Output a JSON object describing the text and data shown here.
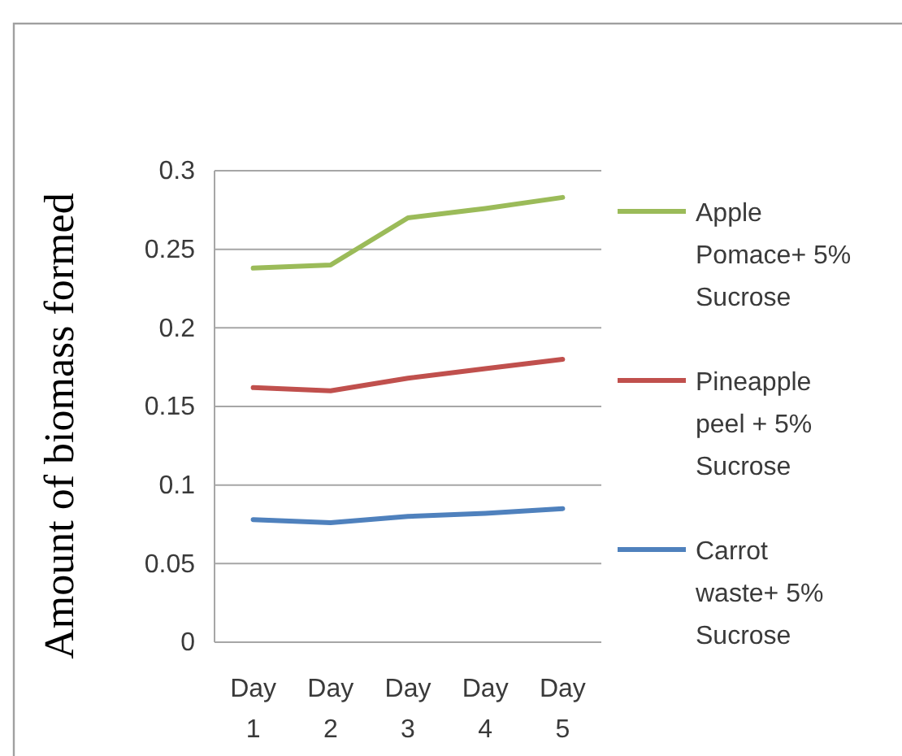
{
  "chart_data": {
    "type": "line",
    "ylabel": "Amount of biomass formed",
    "categories": [
      "Day 1",
      "Day 2",
      "Day 3",
      "Day 4",
      "Day 5"
    ],
    "series": [
      {
        "name": "Apple Pomace+ 5% Sucrose",
        "color": "#9bbb59",
        "values": [
          0.238,
          0.24,
          0.27,
          0.276,
          0.283
        ]
      },
      {
        "name": "Pineapple peel + 5% Sucrose",
        "color": "#c0504d",
        "values": [
          0.162,
          0.16,
          0.168,
          0.174,
          0.18
        ]
      },
      {
        "name": "Carrot waste+ 5% Sucrose",
        "color": "#4f81bd",
        "values": [
          0.078,
          0.076,
          0.08,
          0.082,
          0.085
        ]
      }
    ],
    "ylim": [
      0,
      0.3
    ],
    "yticks": [
      0,
      0.05,
      0.1,
      0.15,
      0.2,
      0.25,
      0.3
    ],
    "grid": "y",
    "legend": "right"
  }
}
